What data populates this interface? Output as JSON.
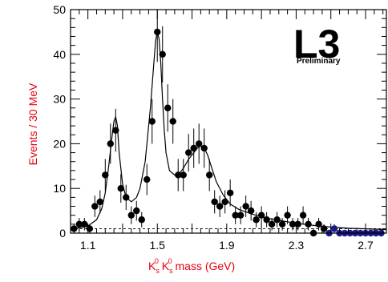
{
  "chart_data": {
    "type": "scatter",
    "xlabel": {
      "parts": [
        "K",
        "s",
        "0",
        " K",
        "s",
        "0",
        " mass (GeV)"
      ]
    },
    "ylabel": "Events / 30 MeV",
    "xlim": [
      1.0,
      2.82
    ],
    "ylim": [
      0,
      50
    ],
    "x_ticks": [
      1.1,
      1.5,
      1.9,
      2.3,
      2.7
    ],
    "x_tick_labels": [
      "1.1",
      "1.5",
      "1.9",
      "2.3",
      "2.7"
    ],
    "y_ticks": [
      0,
      10,
      20,
      30,
      40,
      50
    ],
    "y_tick_labels": [
      "0",
      "10",
      "20",
      "30",
      "40",
      "50"
    ],
    "logo": "L3",
    "annotation": "Preliminary",
    "colors": {
      "axis_title": "#e8000b",
      "points": "#000000",
      "points_tail": "#1a1a8c",
      "fit": "#000000"
    },
    "series": [
      {
        "type": "scatter-errorbar",
        "x": [
          1.02,
          1.05,
          1.08,
          1.11,
          1.14,
          1.17,
          1.2,
          1.23,
          1.26,
          1.29,
          1.32,
          1.35,
          1.38,
          1.41,
          1.44,
          1.47,
          1.5,
          1.53,
          1.56,
          1.59,
          1.62,
          1.65,
          1.68,
          1.71,
          1.74,
          1.77,
          1.8,
          1.83,
          1.86,
          1.89,
          1.92,
          1.95,
          1.98,
          2.01,
          2.04,
          2.07,
          2.1,
          2.13,
          2.16,
          2.19,
          2.22,
          2.25,
          2.28,
          2.31,
          2.34,
          2.37,
          2.4,
          2.43,
          2.46,
          2.49,
          2.52,
          2.55,
          2.58,
          2.61,
          2.64,
          2.67,
          2.7,
          2.73,
          2.76,
          2.79
        ],
        "y": [
          1,
          2,
          2,
          1,
          6,
          7,
          13,
          20,
          23,
          10,
          8,
          4,
          5,
          3,
          12,
          25,
          45,
          40,
          28,
          25,
          13,
          13,
          18,
          19,
          20,
          19,
          13,
          7,
          6,
          7,
          9,
          4,
          4,
          6,
          5,
          3,
          4,
          3,
          2,
          3,
          2,
          4,
          2,
          2,
          4,
          2,
          0,
          2,
          1,
          0,
          1,
          0,
          0,
          0,
          0,
          0,
          0,
          0,
          0,
          0
        ],
        "err": [
          1,
          1.4,
          1.4,
          1,
          2.4,
          2.6,
          3.6,
          4.5,
          4.8,
          3.2,
          2.8,
          2,
          2.2,
          1.7,
          3.5,
          5,
          6.7,
          6.3,
          5.3,
          5,
          3.6,
          3.6,
          4.2,
          4.4,
          4.5,
          4.4,
          3.6,
          2.6,
          2.4,
          2.6,
          3,
          2,
          2,
          2.4,
          2.2,
          1.7,
          2,
          1.7,
          1.4,
          1.7,
          1.4,
          2,
          1.4,
          1.4,
          2,
          1.4,
          0,
          1.4,
          1,
          0,
          1,
          0,
          0,
          0,
          0,
          0,
          0,
          0,
          0,
          0
        ]
      }
    ],
    "fit_curve": {
      "type": "line",
      "x": [
        1.0,
        1.05,
        1.1,
        1.15,
        1.18,
        1.2,
        1.22,
        1.24,
        1.25,
        1.26,
        1.27,
        1.28,
        1.3,
        1.32,
        1.35,
        1.38,
        1.4,
        1.43,
        1.46,
        1.48,
        1.49,
        1.5,
        1.51,
        1.52,
        1.53,
        1.54,
        1.55,
        1.57,
        1.6,
        1.63,
        1.65,
        1.68,
        1.71,
        1.73,
        1.75,
        1.77,
        1.79,
        1.81,
        1.84,
        1.88,
        1.92,
        1.97,
        2.05,
        2.15,
        2.3,
        2.45,
        2.6,
        2.75,
        2.82
      ],
      "y": [
        1.0,
        1.2,
        1.6,
        3.0,
        5.5,
        9.0,
        15.0,
        22.0,
        25.0,
        26.0,
        24.0,
        18.0,
        11.0,
        8.0,
        7.0,
        8.0,
        10.0,
        16.0,
        28.0,
        38.0,
        43.0,
        45.0,
        43.5,
        38.0,
        30.0,
        23.0,
        18.0,
        14.0,
        13.0,
        13.5,
        14.5,
        16.5,
        18.0,
        19.0,
        19.5,
        19.0,
        17.5,
        15.0,
        11.5,
        8.5,
        6.5,
        5.3,
        4.2,
        3.2,
        2.2,
        1.5,
        1.1,
        0.9,
        0.8
      ]
    },
    "baseline": {
      "y": 1.0,
      "style": "dashed"
    },
    "grid": false
  }
}
